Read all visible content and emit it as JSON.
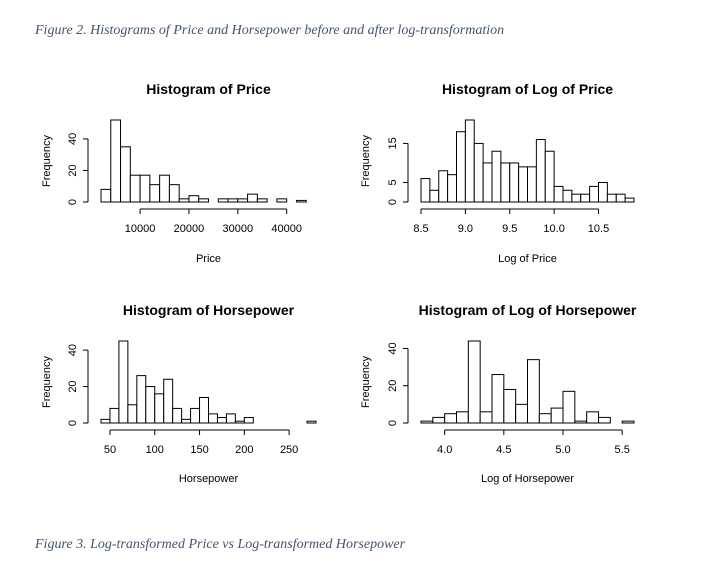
{
  "captions": {
    "figure2": "Figure 2. Histograms of Price and Horsepower before and after log-transformation",
    "figure3": "Figure 3. Log-transformed Price vs Log-transformed Horsepower"
  },
  "chart_data": [
    {
      "type": "bar",
      "title": "Histogram of Price",
      "xlabel": "Price",
      "ylabel": "Frequency",
      "bin_start": 2000,
      "bin_width": 2000,
      "values": [
        8,
        52,
        35,
        17,
        17,
        11,
        17,
        11,
        2,
        4,
        2,
        0,
        2,
        2,
        2,
        5,
        2,
        0,
        2,
        0,
        1
      ],
      "xlim": [
        2000,
        46000
      ],
      "xticks": [
        10000,
        20000,
        30000,
        40000
      ],
      "xtick_labels": [
        "10000",
        "20000",
        "30000",
        "40000"
      ],
      "ylim": [
        0,
        52
      ],
      "yticks": [
        0,
        20,
        40
      ],
      "ytick_labels": [
        "0",
        "20",
        "40"
      ]
    },
    {
      "type": "bar",
      "title": "Histogram of Log of Price",
      "xlabel": "Log of Price",
      "ylabel": "Frequency",
      "bin_start": 8.5,
      "bin_width": 0.1,
      "values": [
        6,
        3,
        8,
        7,
        18,
        21,
        15,
        10,
        13,
        10,
        10,
        9,
        9,
        16,
        13,
        4,
        3,
        2,
        2,
        4,
        5,
        2,
        2,
        1
      ],
      "xlim": [
        8.5,
        10.9
      ],
      "xticks": [
        8.5,
        9.0,
        9.5,
        10.0,
        10.5
      ],
      "xtick_labels": [
        "8.5",
        "9.0",
        "9.5",
        "10.0",
        "10.5"
      ],
      "ylim": [
        0,
        21
      ],
      "yticks": [
        0,
        5,
        15
      ],
      "ytick_labels": [
        "0",
        "5",
        "15"
      ]
    },
    {
      "type": "bar",
      "title": "Histogram of Horsepower",
      "xlabel": "Horsepower",
      "ylabel": "Frequency",
      "bin_start": 40,
      "bin_width": 10,
      "values": [
        2,
        8,
        45,
        10,
        26,
        20,
        16,
        24,
        8,
        2,
        8,
        14,
        5,
        3,
        5,
        1,
        3,
        0,
        0,
        0,
        0,
        0,
        0,
        1
      ],
      "xlim": [
        40,
        280
      ],
      "xticks": [
        50,
        100,
        150,
        200,
        250
      ],
      "xtick_labels": [
        "50",
        "100",
        "150",
        "200",
        "250"
      ],
      "ylim": [
        0,
        45
      ],
      "yticks": [
        0,
        20,
        40
      ],
      "ytick_labels": [
        "0",
        "20",
        "40"
      ]
    },
    {
      "type": "bar",
      "title": "Histogram of Log of Horsepower",
      "xlabel": "Log of Horsepower",
      "ylabel": "Frequency",
      "bin_start": 3.8,
      "bin_width": 0.1,
      "values": [
        1,
        3,
        5,
        6,
        44,
        6,
        26,
        18,
        10,
        34,
        5,
        8,
        17,
        1,
        6,
        3,
        0,
        1
      ],
      "xlim": [
        3.8,
        5.6
      ],
      "xticks": [
        4.0,
        4.5,
        5.0,
        5.5
      ],
      "xtick_labels": [
        "4.0",
        "4.5",
        "5.0",
        "5.5"
      ],
      "ylim": [
        0,
        44
      ],
      "yticks": [
        0,
        20,
        40
      ],
      "ytick_labels": [
        "0",
        "20",
        "40"
      ]
    }
  ]
}
